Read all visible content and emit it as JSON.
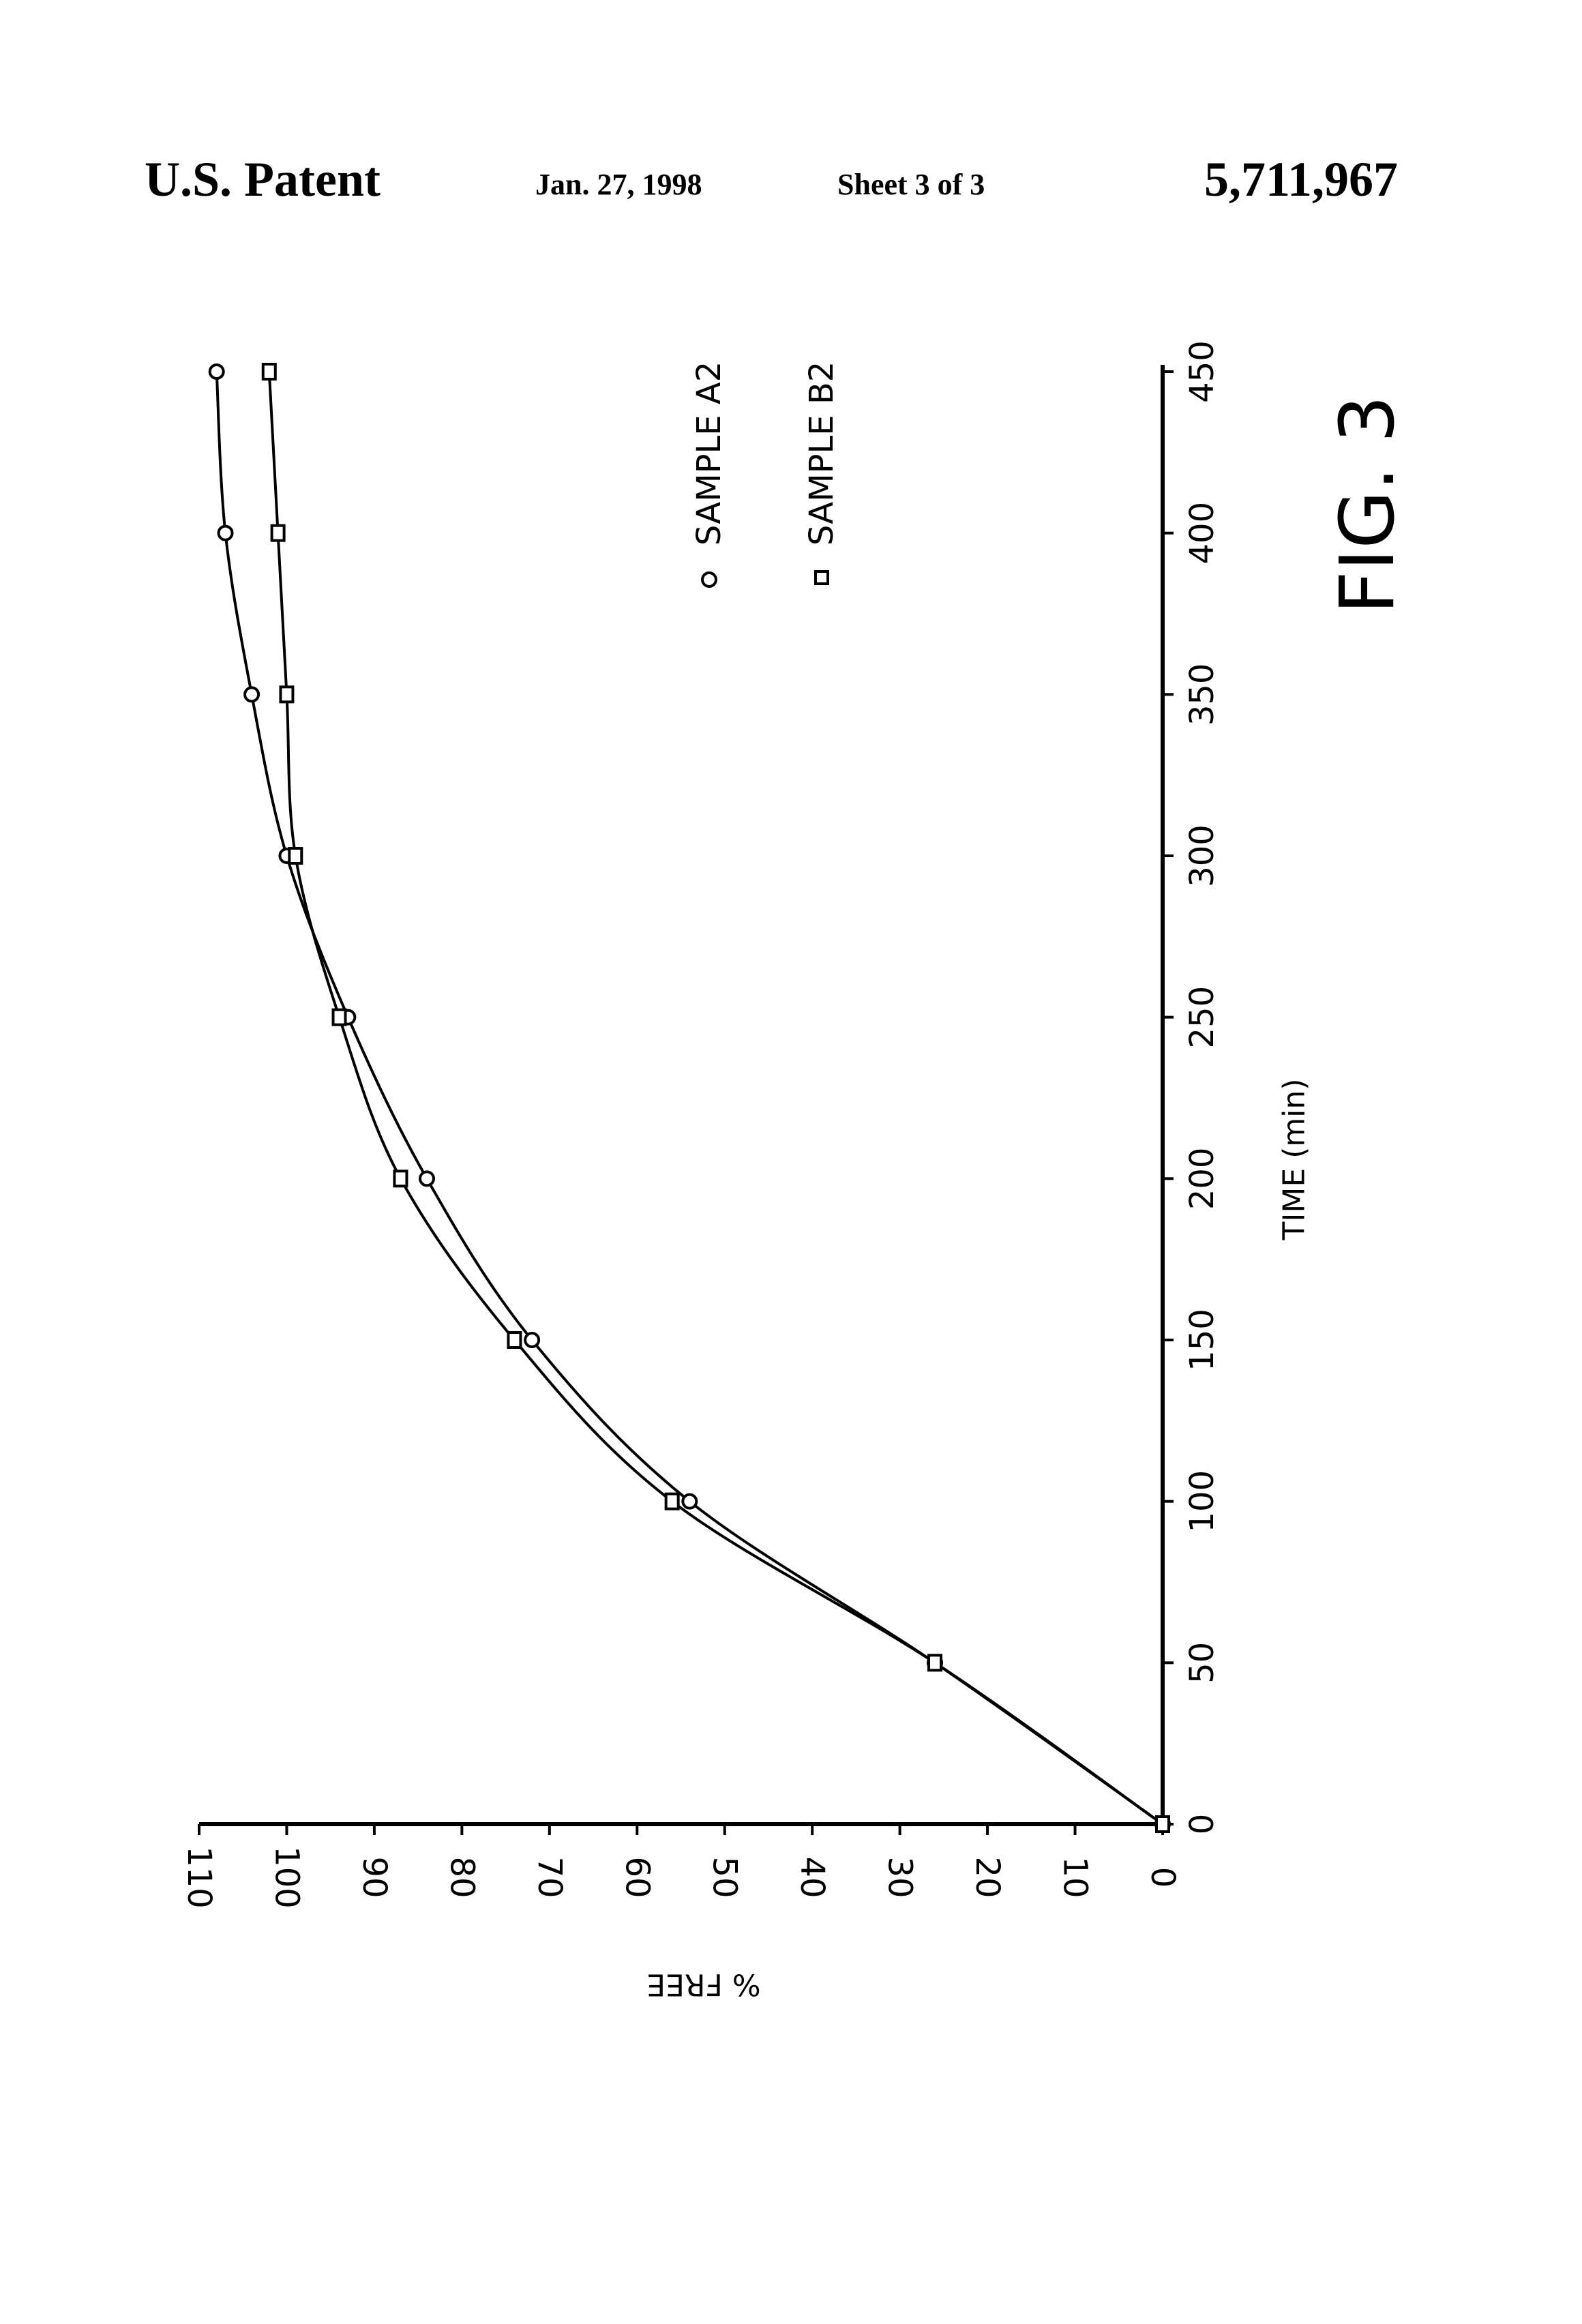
{
  "header": {
    "left": "U.S. Patent",
    "date": "Jan. 27, 1998",
    "sheet": "Sheet 3 of 3",
    "number": "5,711,967"
  },
  "figure_label": "FIG. 3",
  "chart_data": {
    "type": "line",
    "title": "",
    "xlabel": "TIME (min)",
    "ylabel": "% FREE",
    "xlim": [
      0,
      450
    ],
    "ylim": [
      0,
      110
    ],
    "x_ticks": [
      "0",
      "50",
      "100",
      "150",
      "200",
      "250",
      "300",
      "350",
      "400",
      "450"
    ],
    "y_ticks": [
      "0",
      "10",
      "20",
      "30",
      "40",
      "50",
      "60",
      "70",
      "80",
      "90",
      "100",
      "110"
    ],
    "grid": false,
    "legend_position": "top-right",
    "orientation": "rotated 90 degrees counter-clockwise",
    "x": [
      0,
      50,
      100,
      150,
      200,
      250,
      300,
      350,
      400,
      450
    ],
    "series": [
      {
        "name": "SAMPLE A2",
        "marker": "circle",
        "values": [
          0,
          26,
          54,
          72,
          84,
          93,
          100,
          104,
          107,
          108
        ]
      },
      {
        "name": "SAMPLE B2",
        "marker": "square",
        "values": [
          0,
          26,
          56,
          74,
          87,
          94,
          99,
          100,
          101,
          102
        ]
      }
    ]
  }
}
